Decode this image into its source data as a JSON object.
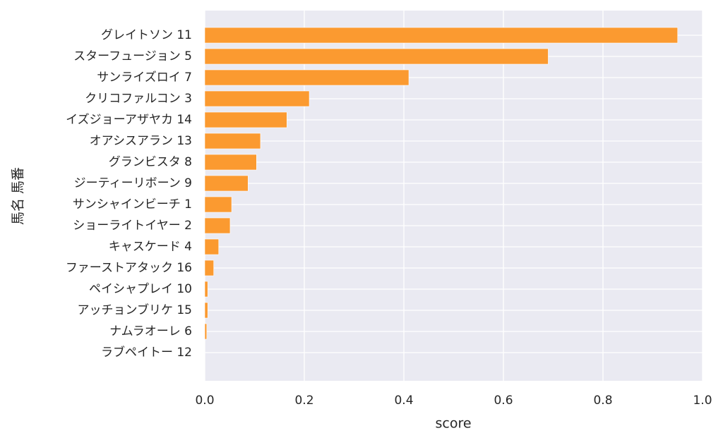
{
  "chart_data": {
    "type": "barh",
    "categories": [
      "グレイトソン 11",
      "スターフュージョン 5",
      "サンライズロイ 7",
      "クリコファルコン 3",
      "イズジョーアザヤカ 14",
      "オアシスアラン 13",
      "グランビスタ 8",
      "ジーティーリボーン 9",
      "サンシャインビーチ 1",
      "ショーライトイヤー 2",
      "キャスケード 4",
      "ファーストアタック 16",
      "ペイシャプレイ 10",
      "アッチョンブリケ 15",
      "ナムラオーレ 6",
      "ラブペイトー 12"
    ],
    "values": [
      0.95,
      0.69,
      0.41,
      0.21,
      0.165,
      0.112,
      0.104,
      0.087,
      0.054,
      0.051,
      0.028,
      0.018,
      0.006,
      0.006,
      0.004,
      0
    ],
    "color": "#fb9a30",
    "xlabel": "score",
    "ylabel": "馬名 馬番",
    "xlim": [
      0,
      1
    ],
    "xticks": [
      {
        "value": 0,
        "label": "0.0"
      },
      0.2,
      0.4,
      0.6,
      0.8,
      {
        "value": 1,
        "label": "1.0"
      }
    ],
    "grid": true
  }
}
